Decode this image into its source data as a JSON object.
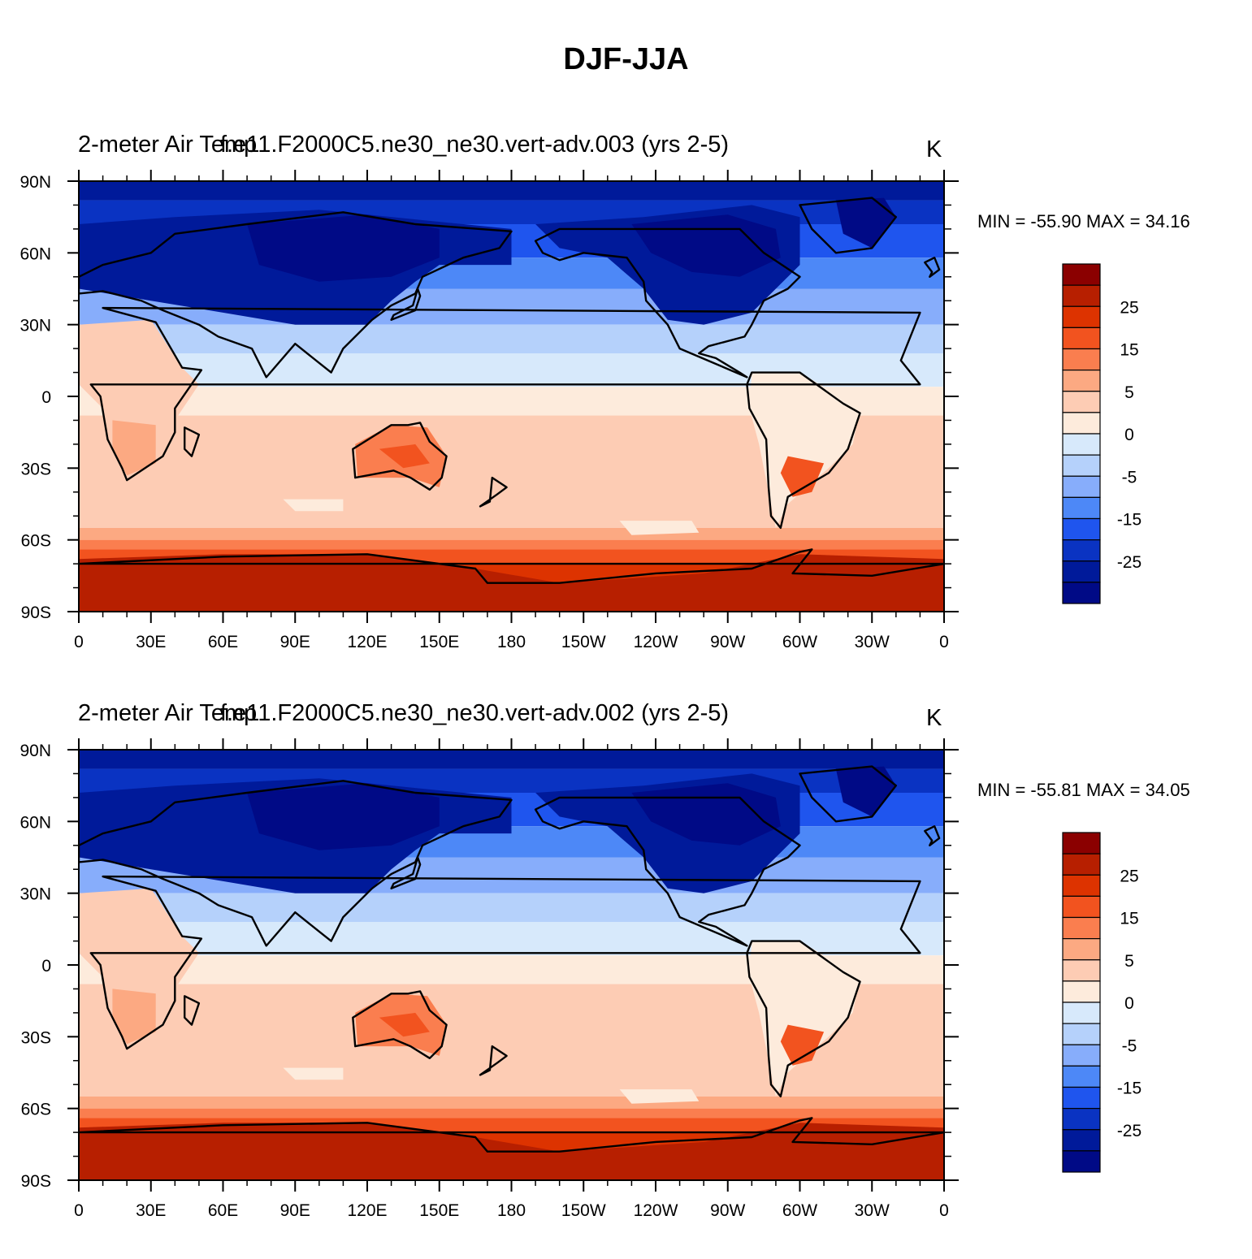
{
  "main_title": "DJF-JJA",
  "panels": [
    {
      "left_title": "2-meter Air Temp",
      "center_title": "f.e11.F2000C5.ne30_ne30.vert-adv.003 (yrs 2-5)",
      "units": "K",
      "min_max_text": "MIN = -55.90 MAX =  34.16"
    },
    {
      "left_title": "2-meter Air Temp",
      "center_title": "f.e11.F2000C5.ne30_ne30.vert-adv.002 (yrs 2-5)",
      "units": "K",
      "min_max_text": "MIN = -55.81 MAX =  34.05"
    }
  ],
  "axes": {
    "lon_labels": [
      "0",
      "30E",
      "60E",
      "90E",
      "120E",
      "150E",
      "180",
      "150W",
      "120W",
      "90W",
      "60W",
      "30W",
      "0"
    ],
    "lat_labels": [
      "90N",
      "60N",
      "30N",
      "0",
      "30S",
      "60S",
      "90S"
    ]
  },
  "colorbar": {
    "labels": [
      "25",
      "15",
      "5",
      "0",
      "-5",
      "-15",
      "-25"
    ],
    "colors": [
      "#8b0000",
      "#b71f00",
      "#dd3300",
      "#f2531f",
      "#fa7e4f",
      "#fca982",
      "#fdccb4",
      "#fdebdc",
      "#d7e9fb",
      "#b5d1fb",
      "#87adfb",
      "#4d88f7",
      "#1f55ee",
      "#0a33c2",
      "#001a9a",
      "#000a86"
    ]
  }
}
